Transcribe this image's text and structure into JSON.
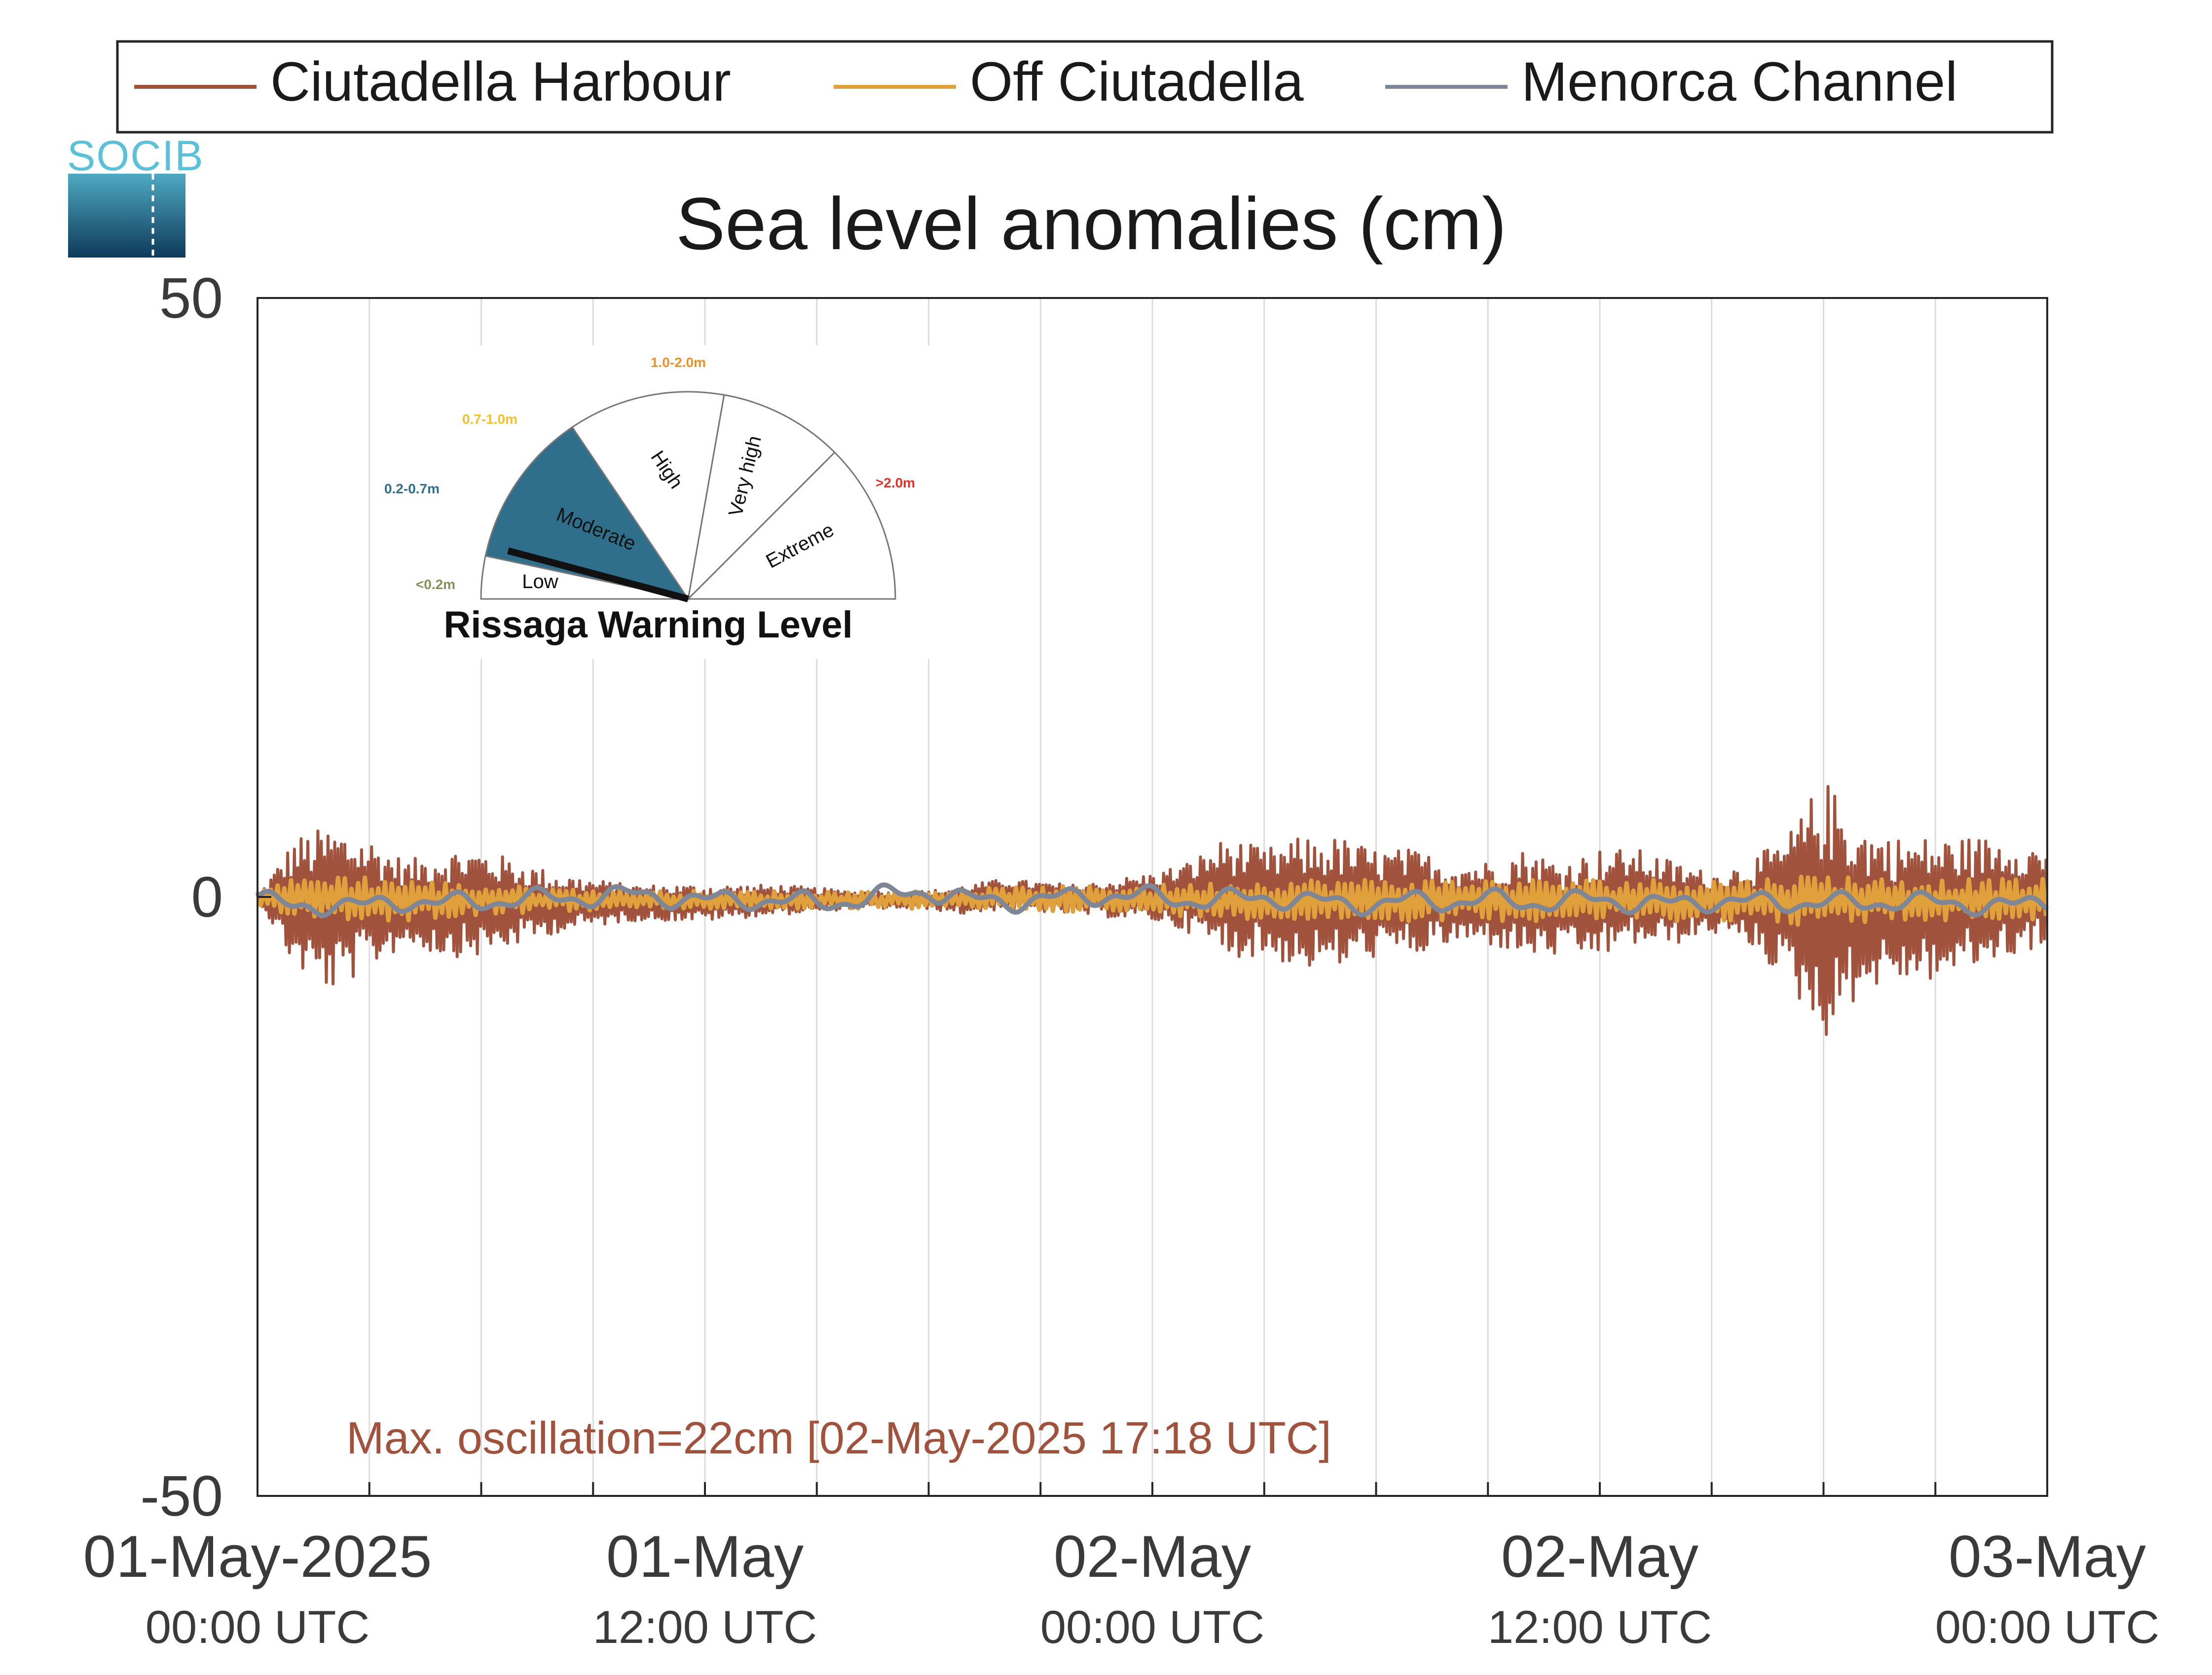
{
  "legend": {
    "items": [
      {
        "label": "Ciutadella Harbour",
        "color": "#A0523D"
      },
      {
        "label": "Off Ciutadella",
        "color": "#E0A03C"
      },
      {
        "label": "Menorca Channel",
        "color": "#7F8796"
      }
    ]
  },
  "logo": {
    "text": "SOCIB",
    "colors": {
      "text": "#5BC0D8",
      "top": "#4FA9C2",
      "bottom": "#0E3A5A"
    }
  },
  "gauge": {
    "title": "Rissaga Warning Level",
    "current_level": "Moderate",
    "sectors": [
      {
        "name": "Low",
        "range": "<0.2m",
        "color": "#8A8F5A"
      },
      {
        "name": "Moderate",
        "range": "0.2-0.7m",
        "color": "#2F6F8C"
      },
      {
        "name": "High",
        "range": "0.7-1.0m",
        "color": "#F2C12E"
      },
      {
        "name": "Very high",
        "range": "1.0-2.0m",
        "color": "#E8932A"
      },
      {
        "name": "Extreme",
        "range": ">2.0m",
        "color": "#E0322B"
      }
    ]
  },
  "annotation": {
    "text": "Max. oscillation=22cm [02-May-2025 17:18 UTC]",
    "color": "#A0523D"
  },
  "chart_data": {
    "type": "line",
    "title": "Sea level anomalies (cm)",
    "xlabel": "",
    "ylabel": "",
    "ylim": [
      -50,
      50
    ],
    "yticks": [
      -50,
      0,
      50
    ],
    "x_unit": "hours since 01-May-2025 00:00 UTC",
    "xlim": [
      0,
      48
    ],
    "xtick_labels": [
      {
        "hour": 0,
        "line1": "01-May-2025",
        "line2": "00:00 UTC"
      },
      {
        "hour": 12,
        "line1": "01-May",
        "line2": "12:00 UTC"
      },
      {
        "hour": 24,
        "line1": "02-May",
        "line2": "00:00 UTC"
      },
      {
        "hour": 36,
        "line1": "02-May",
        "line2": "12:00 UTC"
      },
      {
        "hour": 48,
        "line1": "03-May",
        "line2": "00:00 UTC"
      }
    ],
    "grid": true,
    "grid_hours": [
      3,
      6,
      9,
      12,
      15,
      18,
      21,
      24,
      27,
      30,
      33,
      36,
      39,
      42,
      45
    ],
    "series": [
      {
        "name": "Ciutadella Harbour",
        "color": "#A0523D",
        "envelope_hours": [
          0,
          1,
          2,
          3,
          4,
          5,
          6,
          8,
          10,
          12,
          14,
          16,
          18,
          19,
          20,
          22,
          24,
          25,
          26,
          27,
          28,
          29,
          30,
          31,
          32,
          33,
          34,
          35,
          36,
          37,
          38,
          39,
          40,
          41,
          42,
          43,
          44,
          45,
          46,
          47,
          48
        ],
        "envelope_upper": [
          0,
          5,
          6,
          5,
          3,
          4,
          4,
          2,
          1,
          1,
          1,
          0.5,
          0.5,
          1,
          1.5,
          1,
          2,
          3,
          5,
          4,
          5,
          5,
          4,
          4,
          3,
          3,
          4,
          3,
          4,
          4,
          3,
          2,
          3,
          5,
          10,
          6,
          5,
          5,
          5,
          5,
          4
        ],
        "envelope_lower": [
          0,
          -6,
          -8,
          -6,
          -4,
          -5,
          -5,
          -3,
          -2,
          -2,
          -1.5,
          -1,
          -1,
          -1.5,
          -1,
          -1.5,
          -2,
          -3,
          -5,
          -5,
          -6,
          -6,
          -5,
          -5,
          -4,
          -4,
          -5,
          -5,
          -5,
          -4,
          -4,
          -3,
          -4,
          -7,
          -12,
          -8,
          -7,
          -7,
          -6,
          -5,
          -4
        ]
      },
      {
        "name": "Off Ciutadella",
        "color": "#E0A03C",
        "envelope_hours": [
          0,
          2,
          4,
          6,
          10,
          14,
          18,
          20,
          24,
          28,
          32,
          36,
          40,
          42,
          44,
          46,
          48
        ],
        "envelope_upper": [
          1,
          2,
          1.5,
          1,
          0.5,
          0.5,
          0.5,
          0.8,
          1,
          1.5,
          1.5,
          1.5,
          1.5,
          2,
          1.5,
          1.5,
          1.5
        ],
        "envelope_lower": [
          -1,
          -2,
          -2,
          -1.5,
          -1,
          -1,
          -1,
          -1,
          -1.5,
          -2,
          -2,
          -2,
          -2,
          -2.5,
          -2,
          -2,
          -2
        ]
      },
      {
        "name": "Menorca Channel",
        "color": "#7F8796",
        "hours": [
          0,
          1,
          2,
          3,
          4,
          5,
          6,
          7,
          8,
          9,
          10,
          11,
          12,
          13,
          14,
          15,
          16,
          17,
          18,
          19,
          20,
          21,
          22,
          23,
          24,
          25,
          26,
          27,
          28,
          29,
          30,
          31,
          32,
          33,
          34,
          35,
          36,
          37,
          38,
          39,
          40,
          41,
          42,
          43,
          44,
          45,
          46,
          47,
          48
        ],
        "values": [
          0,
          -1,
          -0.5,
          -0.8,
          -0.3,
          -0.5,
          -0.4,
          -0.2,
          -0.1,
          0,
          0.2,
          0,
          -0.3,
          -0.2,
          -0.3,
          -0.5,
          -0.3,
          0.2,
          0.5,
          -0.2,
          -0.4,
          -0.2,
          0,
          0.2,
          0,
          -0.3,
          -0.2,
          0,
          -0.3,
          -0.5,
          -0.6,
          -0.3,
          -0.4,
          -0.2,
          -0.5,
          -0.4,
          -0.2,
          -0.5,
          -0.6,
          -0.3,
          -0.4,
          -0.5,
          -0.4,
          -0.6,
          -0.3,
          -0.5,
          -0.6,
          -0.8,
          -0.4
        ]
      }
    ]
  }
}
